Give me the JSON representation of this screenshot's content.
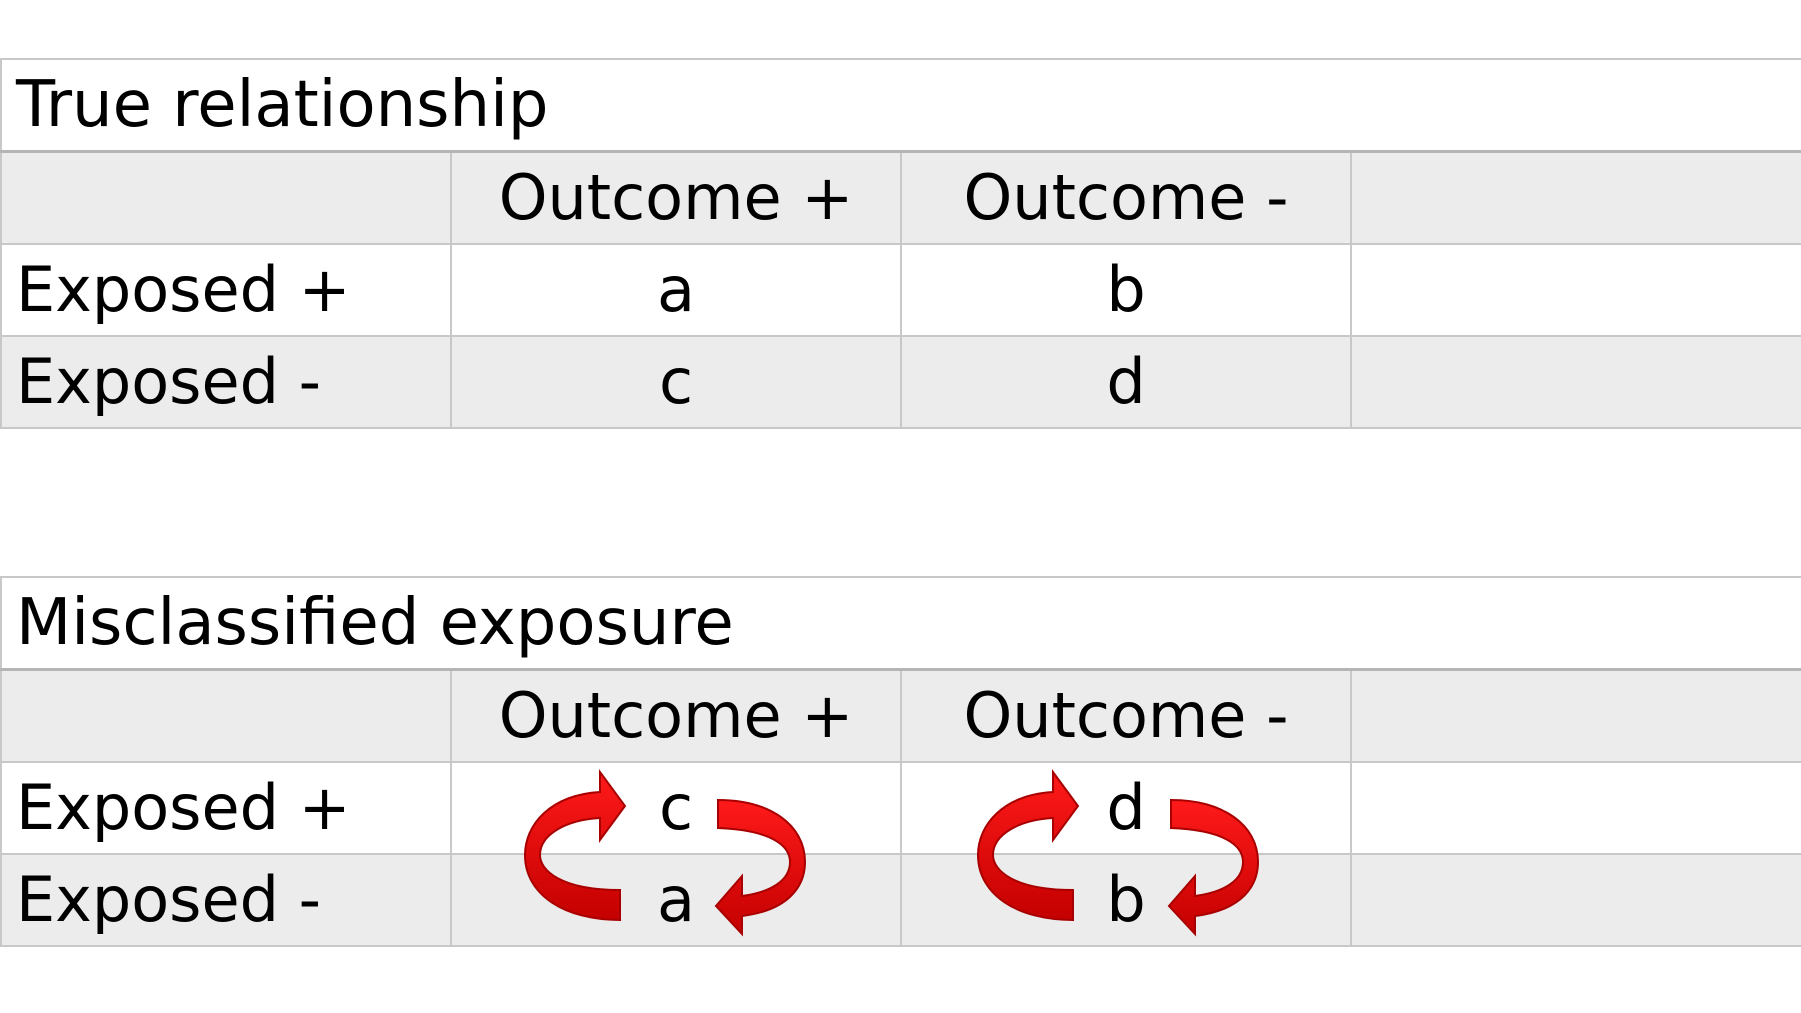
{
  "tables": [
    {
      "title": "True relationship",
      "header": [
        "",
        "Outcome +",
        "Outcome -",
        ""
      ],
      "rows": [
        {
          "label": "Exposed +",
          "cells": [
            "a",
            "b",
            ""
          ]
        },
        {
          "label": "Exposed -",
          "cells": [
            "c",
            "d",
            ""
          ]
        }
      ]
    },
    {
      "title": "Misclassified exposure",
      "header": [
        "",
        "Outcome +",
        "Outcome -",
        ""
      ],
      "rows": [
        {
          "label": "Exposed +",
          "cells": [
            "c",
            "d",
            ""
          ]
        },
        {
          "label": "Exposed -",
          "cells": [
            "a",
            "b",
            ""
          ]
        }
      ]
    }
  ],
  "colors": {
    "arrow": "#e60000",
    "arrow_dark": "#b00000",
    "grid_line": "#c8c8c8",
    "shaded_row": "#ececec"
  },
  "icons": [
    "swap-arrow-left-icon",
    "swap-arrow-right-icon"
  ]
}
